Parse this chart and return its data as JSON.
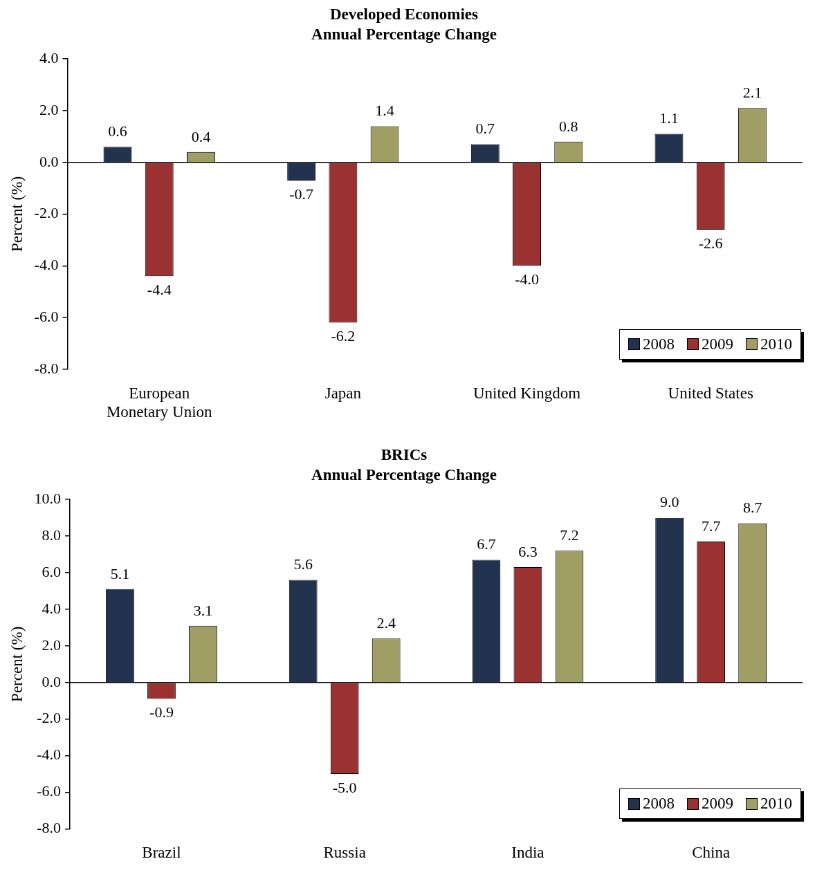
{
  "chart_data": [
    {
      "type": "bar",
      "title": "Developed Economies",
      "subtitle": "Annual Percentage Change",
      "ylabel": "Percent (%)",
      "categories": [
        "European Monetary Union",
        "Japan",
        "United Kingdom",
        "United States"
      ],
      "series": [
        {
          "name": "2008",
          "color": "#22334f",
          "values": [
            0.6,
            -0.7,
            0.7,
            1.1
          ],
          "value_labels": [
            "0.6",
            "-0.7",
            "0.7",
            "1.1"
          ]
        },
        {
          "name": "2009",
          "color": "#9b3232",
          "values": [
            -4.4,
            -6.2,
            -4.0,
            -2.6
          ],
          "value_labels": [
            "-4.4",
            "-6.2",
            "-4.0",
            "-2.6"
          ]
        },
        {
          "name": "2010",
          "color": "#a09e64",
          "values": [
            0.4,
            1.4,
            0.8,
            2.1
          ],
          "value_labels": [
            "0.4",
            "1.4",
            "0.8",
            "2.1"
          ]
        }
      ],
      "ylim": [
        -8,
        4
      ],
      "yticks": [
        {
          "value": -8,
          "label": "-8.0"
        },
        {
          "value": -6,
          "label": "-6.0"
        },
        {
          "value": -4,
          "label": "-4.0"
        },
        {
          "value": -2,
          "label": "-2.0"
        },
        {
          "value": 0,
          "label": "0.0"
        },
        {
          "value": 2,
          "label": "2.0"
        },
        {
          "value": 4,
          "label": "4.0"
        }
      ],
      "ref_lines": [
        {
          "axis": "y",
          "value": 0,
          "color": "#000000"
        }
      ],
      "legend": "bottom right"
    },
    {
      "type": "bar",
      "title": "BRICs",
      "subtitle": "Annual Percentage Change",
      "ylabel": "Percent (%)",
      "categories": [
        "Brazil",
        "Russia",
        "India",
        "China"
      ],
      "series": [
        {
          "name": "2008",
          "color": "#22334f",
          "values": [
            5.1,
            5.6,
            6.7,
            9.0
          ],
          "value_labels": [
            "5.1",
            "5.6",
            "6.7",
            "9.0"
          ]
        },
        {
          "name": "2009",
          "color": "#9b3232",
          "values": [
            -0.9,
            -5.0,
            6.3,
            7.7
          ],
          "value_labels": [
            "-0.9",
            "-5.0",
            "6.3",
            "7.7"
          ]
        },
        {
          "name": "2010",
          "color": "#a09e64",
          "values": [
            3.1,
            2.4,
            7.2,
            8.7
          ],
          "value_labels": [
            "3.1",
            "2.4",
            "7.2",
            "8.7"
          ]
        }
      ],
      "ylim": [
        -8,
        10
      ],
      "yticks": [
        {
          "value": -8,
          "label": "-8.0"
        },
        {
          "value": -6,
          "label": "-6.0"
        },
        {
          "value": -4,
          "label": "-4.0"
        },
        {
          "value": -2,
          "label": "-2.0"
        },
        {
          "value": 0,
          "label": "0.0"
        },
        {
          "value": 2,
          "label": "2.0"
        },
        {
          "value": 4,
          "label": "4.0"
        },
        {
          "value": 6,
          "label": "6.0"
        },
        {
          "value": 8,
          "label": "8.0"
        },
        {
          "value": 10,
          "label": "10.0"
        }
      ],
      "ref_lines": [
        {
          "axis": "y",
          "value": 0,
          "color": "#000000"
        }
      ],
      "legend": "bottom right"
    }
  ]
}
